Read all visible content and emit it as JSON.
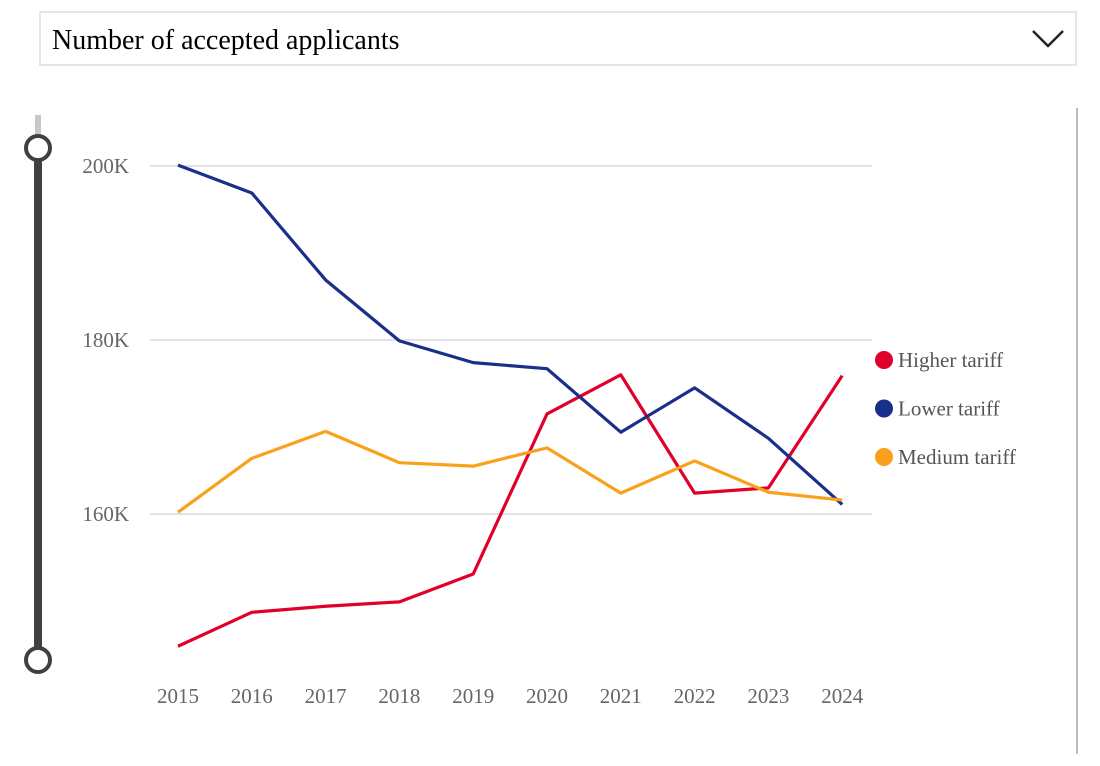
{
  "dropdown": {
    "selected": "Number of accepted applicants"
  },
  "chart_data": {
    "type": "line",
    "title": "Number of accepted applicants",
    "x": [
      "2015",
      "2016",
      "2017",
      "2018",
      "2019",
      "2020",
      "2021",
      "2022",
      "2023",
      "2024"
    ],
    "y_ticks": [
      "160K",
      "180K",
      "200K"
    ],
    "y_tick_values": [
      160000,
      180000,
      200000
    ],
    "ylim": [
      144000,
      203000
    ],
    "grid": true,
    "legend_position": "right",
    "series": [
      {
        "name": "Higher tariff",
        "color": "#e0002a",
        "values": [
          144800,
          148700,
          149400,
          149900,
          153100,
          171500,
          176000,
          162400,
          163000,
          175900
        ]
      },
      {
        "name": "Lower tariff",
        "color": "#1a2f8a",
        "values": [
          200100,
          196900,
          186900,
          179900,
          177400,
          176700,
          169400,
          174500,
          168700,
          161100
        ]
      },
      {
        "name": "Medium tariff",
        "color": "#f9a11b",
        "values": [
          160200,
          166400,
          169500,
          165900,
          165500,
          167600,
          162400,
          166100,
          162500,
          161600
        ]
      }
    ]
  }
}
